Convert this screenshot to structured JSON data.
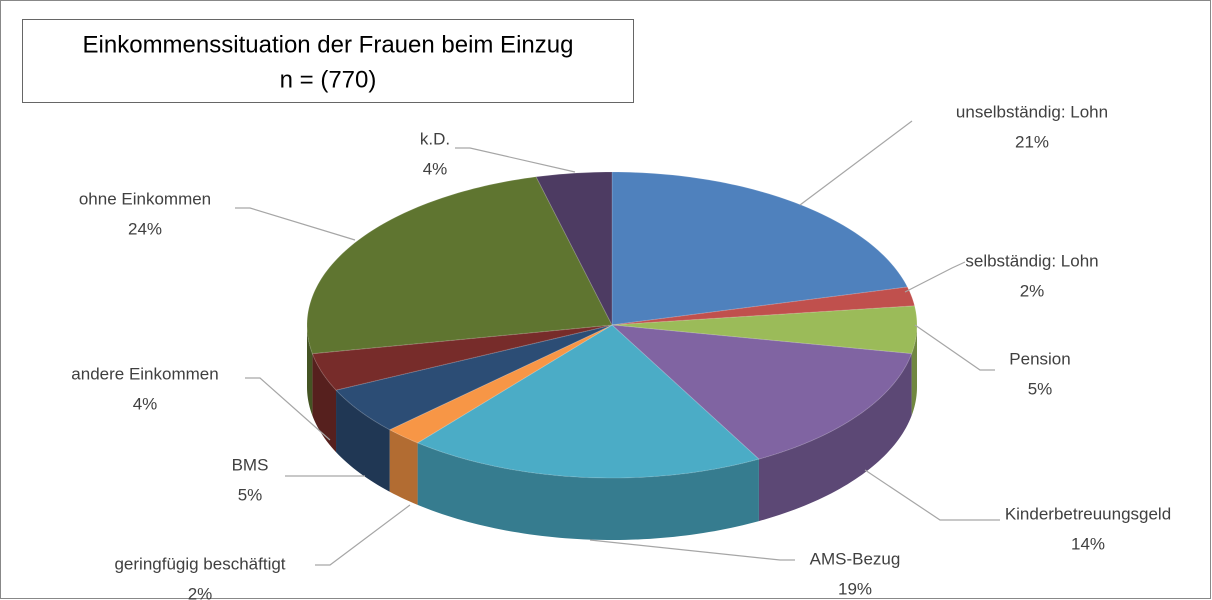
{
  "chart_data": {
    "type": "pie3d",
    "title": "Einkommenssituation der Frauen beim Einzug",
    "subtitle": "n = (770)",
    "categories": [
      "unselbständig: Lohn",
      "selbständig: Lohn",
      "Pension",
      "Kinderbetreuungsgeld",
      "AMS-Bezug",
      "geringfügig beschäftigt",
      "BMS",
      "andere Einkommen",
      "ohne Einkommen",
      "k.D."
    ],
    "values": [
      21,
      2,
      5,
      14,
      19,
      2,
      5,
      4,
      24,
      4
    ],
    "value_labels": [
      "21%",
      "2%",
      "5%",
      "14%",
      "19%",
      "2%",
      "5%",
      "4%",
      "24%",
      "4%"
    ],
    "colors": [
      "#4f81bd",
      "#c0504d",
      "#9bbb59",
      "#8064a2",
      "#4bacc6",
      "#f79646",
      "#2c4d75",
      "#772c2a",
      "#5f7530",
      "#4d3b62"
    ]
  }
}
